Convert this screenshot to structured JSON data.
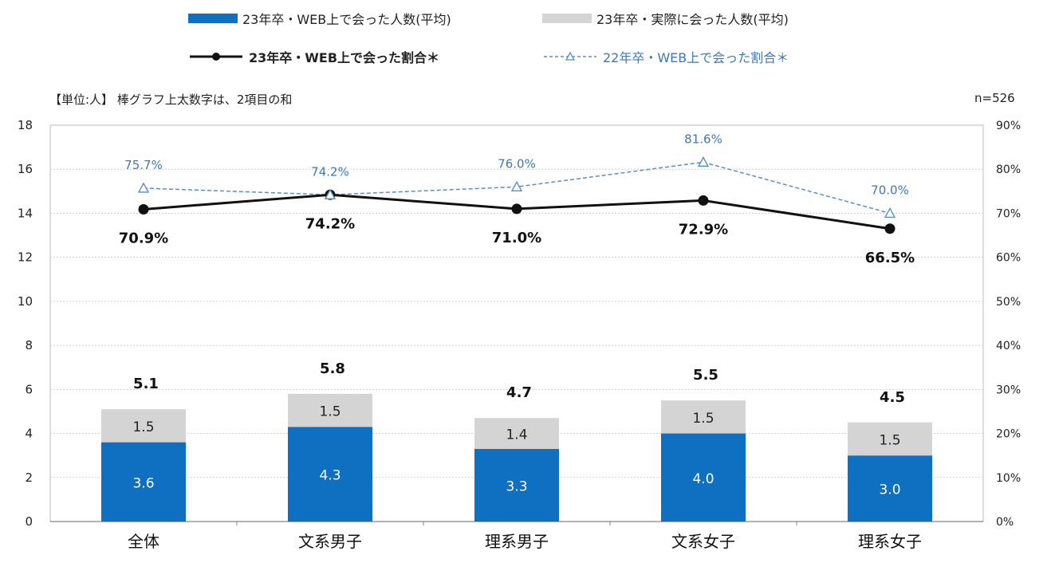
{
  "legend": {
    "items": [
      {
        "key": "web_met",
        "label": "23年卒・WEB上で会った人数(平均)"
      },
      {
        "key": "real_met",
        "label": "23年卒・実際に会った人数(平均)"
      },
      {
        "key": "rate23",
        "label": "23年卒・WEB上で会った割合＊"
      },
      {
        "key": "rate22",
        "label": "22年卒・WEB上で会った割合＊"
      }
    ]
  },
  "notes": {
    "unit_note": "【単位:人】 棒グラフ上太数字は、2項目の和",
    "sample_size": "n=526"
  },
  "colors": {
    "web_bar": "#0f6fc1",
    "real_bar": "#d4d4d4",
    "rate23_line": "#111111",
    "rate22_line": "#5b8ec2",
    "grid": "#cfcfcf"
  },
  "chart_data": {
    "type": "bar",
    "stacked": true,
    "categories": [
      "全体",
      "文系男子",
      "理系男子",
      "文系女子",
      "理系女子"
    ],
    "series": [
      {
        "name": "23年卒・WEB上で会った人数(平均)",
        "axis": "left",
        "kind": "bar",
        "values": [
          3.6,
          4.3,
          3.3,
          4.0,
          3.0
        ],
        "labels": [
          "3.6",
          "4.3",
          "3.3",
          "4.0",
          "3.0"
        ]
      },
      {
        "name": "23年卒・実際に会った人数(平均)",
        "axis": "left",
        "kind": "bar",
        "values": [
          1.5,
          1.5,
          1.4,
          1.5,
          1.5
        ],
        "labels": [
          "1.5",
          "1.5",
          "1.4",
          "1.5",
          "1.5"
        ]
      },
      {
        "name": "23年卒・WEB上で会った割合＊",
        "axis": "right",
        "kind": "line",
        "values": [
          70.9,
          74.2,
          71.0,
          72.9,
          66.5
        ],
        "labels": [
          "70.9%",
          "74.2%",
          "71.0%",
          "72.9%",
          "66.5%"
        ]
      },
      {
        "name": "22年卒・WEB上で会った割合＊",
        "axis": "right",
        "kind": "line",
        "values": [
          75.7,
          74.2,
          76.0,
          81.6,
          70.0
        ],
        "labels": [
          "75.7%",
          "74.2%",
          "76.0%",
          "81.6%",
          "70.0%"
        ]
      }
    ],
    "totals": [
      "5.1",
      "5.8",
      "4.7",
      "5.5",
      "4.5"
    ],
    "left_axis": {
      "ylim": [
        0,
        18
      ],
      "ticks": [
        "0",
        "2",
        "4",
        "6",
        "8",
        "10",
        "12",
        "14",
        "16",
        "18"
      ]
    },
    "right_axis": {
      "ylim": [
        0,
        90
      ],
      "ticks": [
        "0%",
        "10%",
        "20%",
        "30%",
        "40%",
        "50%",
        "60%",
        "70%",
        "80%",
        "90%"
      ]
    },
    "grid": true,
    "legend_position": "top"
  }
}
